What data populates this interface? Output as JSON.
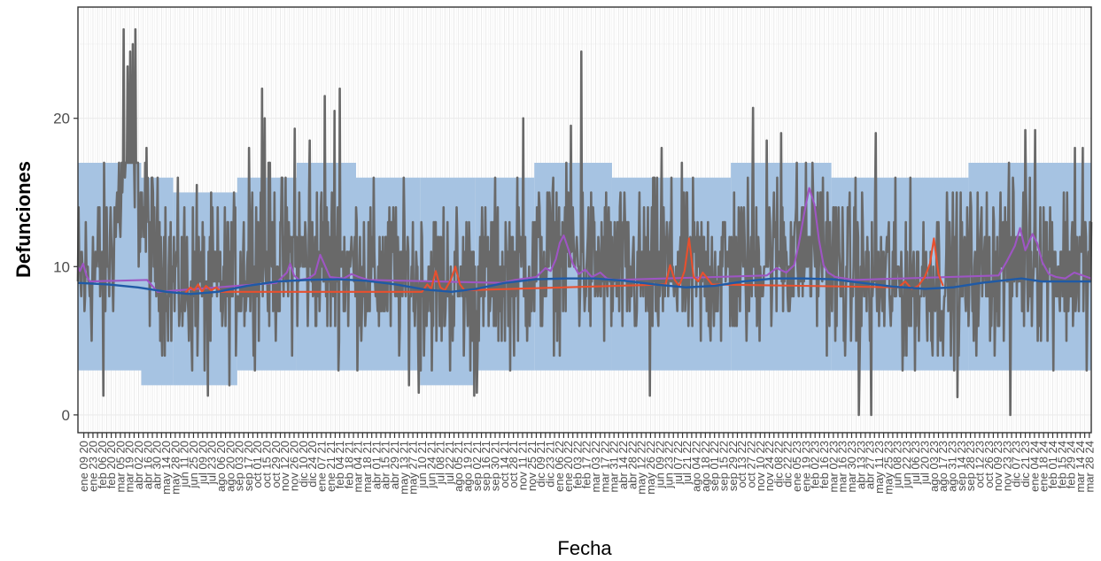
{
  "chart_data": {
    "type": "line",
    "title": "",
    "xlabel": "Fecha",
    "ylabel": "Defunciones",
    "ylim": [
      -1.2,
      27.5
    ],
    "xlim": [
      "2019-12-31",
      "2024-03-31"
    ],
    "y_ticks": [
      0,
      10,
      20
    ],
    "x_tick_labels": [
      "ene 09 20",
      "ene 23 20",
      "feb 06 20",
      "feb 20 20",
      "mar 05 20",
      "mar 19 20",
      "abr 02 20",
      "abr 16 20",
      "abr 30 20",
      "may 14 20",
      "may 28 20",
      "jun 11 20",
      "jun 25 20",
      "jul 09 20",
      "jul 23 20",
      "ago 06 20",
      "ago 20 20",
      "sep 03 20",
      "sep 17 20",
      "oct 01 20",
      "oct 15 20",
      "oct 29 20",
      "nov 12 20",
      "nov 26 20",
      "dic 10 20",
      "dic 24 20",
      "ene 07 21",
      "ene 21 21",
      "feb 04 21",
      "feb 18 21",
      "mar 04 21",
      "mar 18 21",
      "abr 01 21",
      "abr 15 21",
      "abr 29 21",
      "may 13 21",
      "may 27 21",
      "jun 10 21",
      "jun 24 21",
      "jul 08 21",
      "jul 22 21",
      "ago 05 21",
      "ago 19 21",
      "sep 02 21",
      "sep 16 21",
      "sep 30 21",
      "oct 14 21",
      "oct 28 21",
      "nov 11 21",
      "nov 25 21",
      "dic 09 21",
      "dic 23 21",
      "ene 06 22",
      "ene 20 22",
      "feb 03 22",
      "feb 17 22",
      "mar 03 22",
      "mar 17 22",
      "mar 31 22",
      "abr 14 22",
      "abr 28 22",
      "may 12 22",
      "may 26 22",
      "jun 09 22",
      "jun 23 22",
      "jul 07 22",
      "jul 21 22",
      "ago 04 22",
      "ago 18 22",
      "sep 01 22",
      "sep 15 22",
      "sep 29 22",
      "oct 13 22",
      "oct 27 22",
      "nov 10 22",
      "nov 24 22",
      "dic 08 22",
      "dic 22 22",
      "ene 05 23",
      "ene 19 23",
      "feb 02 23",
      "feb 16 23",
      "mar 02 23",
      "mar 16 23",
      "mar 30 23",
      "abr 13 23",
      "abr 27 23",
      "may 11 23",
      "may 25 23",
      "jun 08 23",
      "jun 22 23",
      "jul 06 23",
      "jul 20 23",
      "ago 03 23",
      "ago 17 23",
      "ago 31 23",
      "sep 14 23",
      "sep 28 23",
      "oct 12 23",
      "oct 26 23",
      "nov 09 23",
      "nov 23 23",
      "dic 07 23",
      "dic 21 23",
      "ene 04 24",
      "ene 18 24",
      "feb 01 24",
      "feb 15 24",
      "feb 29 24",
      "mar 14 24",
      "mar 28 24"
    ],
    "band": {
      "color": "#a6c3e2",
      "segments": [
        {
          "start": "2019-12-31",
          "end": "2020-04-06",
          "low": 3,
          "high": 17
        },
        {
          "start": "2020-04-06",
          "end": "2020-05-25",
          "low": 2,
          "high": 16
        },
        {
          "start": "2020-05-25",
          "end": "2020-08-31",
          "low": 2,
          "high": 15
        },
        {
          "start": "2020-08-31",
          "end": "2020-11-30",
          "low": 3,
          "high": 16
        },
        {
          "start": "2020-11-30",
          "end": "2021-03-01",
          "low": 3,
          "high": 17
        },
        {
          "start": "2021-03-01",
          "end": "2021-06-07",
          "low": 3,
          "high": 16
        },
        {
          "start": "2021-06-07",
          "end": "2021-08-30",
          "low": 2,
          "high": 16
        },
        {
          "start": "2021-08-30",
          "end": "2021-11-29",
          "low": 3,
          "high": 16
        },
        {
          "start": "2021-11-29",
          "end": "2022-03-28",
          "low": 3,
          "high": 17
        },
        {
          "start": "2022-03-28",
          "end": "2022-09-26",
          "low": 3,
          "high": 16
        },
        {
          "start": "2022-09-26",
          "end": "2023-02-27",
          "low": 3,
          "high": 17
        },
        {
          "start": "2023-02-27",
          "end": "2023-09-25",
          "low": 3,
          "high": 16
        },
        {
          "start": "2023-09-25",
          "end": "2024-03-31",
          "low": 3,
          "high": 17
        }
      ]
    },
    "series": [
      {
        "color": "#696969",
        "kind": "observed-daily",
        "anchors": [
          [
            "2019-12-31",
            9
          ],
          [
            "2020-01-20",
            9.5
          ],
          [
            "2020-02-20",
            11
          ],
          [
            "2020-03-05",
            15
          ],
          [
            "2020-03-15",
            19
          ],
          [
            "2020-03-25",
            20
          ],
          [
            "2020-04-05",
            14
          ],
          [
            "2020-04-25",
            11
          ],
          [
            "2020-06-01",
            9
          ],
          [
            "2020-07-10",
            8.5
          ],
          [
            "2020-08-20",
            9
          ],
          [
            "2020-10-01",
            11
          ],
          [
            "2020-11-15",
            10.5
          ],
          [
            "2021-01-01",
            10.5
          ],
          [
            "2021-02-15",
            10
          ],
          [
            "2021-04-15",
            9.5
          ],
          [
            "2021-06-15",
            9
          ],
          [
            "2021-08-15",
            9
          ],
          [
            "2021-10-01",
            9.5
          ],
          [
            "2021-12-01",
            10
          ],
          [
            "2022-01-15",
            11
          ],
          [
            "2022-03-01",
            10
          ],
          [
            "2022-05-01",
            9.5
          ],
          [
            "2022-07-01",
            10
          ],
          [
            "2022-08-15",
            9.5
          ],
          [
            "2022-10-15",
            10
          ],
          [
            "2022-12-15",
            11
          ],
          [
            "2023-02-01",
            11.5
          ],
          [
            "2023-03-15",
            9.5
          ],
          [
            "2023-05-15",
            9
          ],
          [
            "2023-07-15",
            9
          ],
          [
            "2023-09-15",
            9.5
          ],
          [
            "2023-11-01",
            10
          ],
          [
            "2023-12-20",
            11
          ],
          [
            "2024-01-20",
            10.5
          ],
          [
            "2024-03-31",
            9.5
          ]
        ],
        "spread": 2.7,
        "peaks": [
          [
            "2020-03-10",
            26
          ],
          [
            "2020-03-16",
            23.5
          ],
          [
            "2020-03-20",
            24.5
          ],
          [
            "2020-03-24",
            25
          ],
          [
            "2020-03-28",
            26
          ],
          [
            "2020-04-14",
            18
          ],
          [
            "2020-06-30",
            15.5
          ],
          [
            "2020-09-18",
            18
          ],
          [
            "2020-10-08",
            22
          ],
          [
            "2020-10-12",
            20
          ],
          [
            "2020-11-27",
            19.3
          ],
          [
            "2020-12-20",
            18.5
          ],
          [
            "2021-01-12",
            21.5
          ],
          [
            "2021-01-27",
            20.5
          ],
          [
            "2021-02-04",
            22
          ],
          [
            "2021-11-12",
            20
          ],
          [
            "2022-01-24",
            19.5
          ],
          [
            "2022-02-09",
            24.5
          ],
          [
            "2022-06-12",
            18
          ],
          [
            "2022-10-30",
            20.7
          ],
          [
            "2022-11-20",
            18.5
          ],
          [
            "2022-12-12",
            19
          ],
          [
            "2023-02-14",
            16
          ],
          [
            "2023-04-05",
            16
          ],
          [
            "2023-05-06",
            19
          ],
          [
            "2023-12-21",
            19.2
          ],
          [
            "2024-01-05",
            19.2
          ],
          [
            "2024-03-06",
            18
          ],
          [
            "2024-03-18",
            18
          ]
        ],
        "dips": [
          [
            "2020-02-08",
            1.3
          ],
          [
            "2020-07-17",
            1.3
          ],
          [
            "2021-06-05",
            1.5
          ],
          [
            "2021-08-29",
            1.3
          ],
          [
            "2021-09-02",
            1.5
          ],
          [
            "2022-05-25",
            1.3
          ],
          [
            "2023-04-10",
            0
          ],
          [
            "2023-04-29",
            0
          ],
          [
            "2023-09-08",
            1.2
          ],
          [
            "2023-11-28",
            0
          ]
        ]
      },
      {
        "color": "#9e55c4",
        "kind": "excess-high",
        "points": [
          [
            "2019-12-31",
            10
          ],
          [
            "2020-01-03",
            9.7
          ],
          [
            "2020-01-08",
            10.2
          ],
          [
            "2020-01-13",
            9.4
          ],
          [
            "2020-01-18",
            9
          ],
          [
            "2020-04-15",
            9.1
          ],
          [
            "2020-04-25",
            8.6
          ],
          [
            "2020-05-01",
            8.3
          ],
          [
            "2020-10-30",
            8.9
          ],
          [
            "2020-11-08",
            9.3
          ],
          [
            "2020-11-15",
            9.6
          ],
          [
            "2020-11-20",
            10.2
          ],
          [
            "2020-11-26",
            9.4
          ],
          [
            "2020-12-04",
            9.1
          ],
          [
            "2020-12-18",
            9.2
          ],
          [
            "2020-12-28",
            9.5
          ],
          [
            "2021-01-05",
            10.8
          ],
          [
            "2021-01-12",
            10.1
          ],
          [
            "2021-01-20",
            9.3
          ],
          [
            "2021-02-10",
            9.2
          ],
          [
            "2021-02-22",
            9.5
          ],
          [
            "2021-03-05",
            9.3
          ],
          [
            "2021-03-20",
            9.1
          ],
          [
            "2021-10-10",
            8.9
          ],
          [
            "2021-10-30",
            9.1
          ],
          [
            "2021-12-02",
            9.3
          ],
          [
            "2021-12-16",
            9.9
          ],
          [
            "2021-12-24",
            9.7
          ],
          [
            "2022-01-01",
            10.5
          ],
          [
            "2022-01-07",
            11.6
          ],
          [
            "2022-01-13",
            12.1
          ],
          [
            "2022-01-20",
            11.2
          ],
          [
            "2022-01-27",
            10.2
          ],
          [
            "2022-02-05",
            9.5
          ],
          [
            "2022-02-15",
            9.8
          ],
          [
            "2022-02-25",
            9.3
          ],
          [
            "2022-03-10",
            9.6
          ],
          [
            "2022-03-20",
            9.2
          ],
          [
            "2022-04-01",
            9.1
          ],
          [
            "2022-11-20",
            9.4
          ],
          [
            "2022-12-05",
            9.9
          ],
          [
            "2022-12-20",
            9.6
          ],
          [
            "2023-01-01",
            10.1
          ],
          [
            "2023-01-08",
            11.5
          ],
          [
            "2023-01-16",
            13.5
          ],
          [
            "2023-01-24",
            15.3
          ],
          [
            "2023-02-01",
            14.2
          ],
          [
            "2023-02-08",
            11.8
          ],
          [
            "2023-02-15",
            10.1
          ],
          [
            "2023-02-22",
            9.6
          ],
          [
            "2023-03-05",
            9.3
          ],
          [
            "2023-03-20",
            9.2
          ],
          [
            "2023-04-01",
            9.1
          ],
          [
            "2023-11-10",
            9.4
          ],
          [
            "2023-11-22",
            10.3
          ],
          [
            "2023-12-05",
            11.4
          ],
          [
            "2023-12-13",
            12.6
          ],
          [
            "2023-12-21",
            11.1
          ],
          [
            "2024-01-01",
            12.2
          ],
          [
            "2024-01-08",
            11.6
          ],
          [
            "2024-01-16",
            10.3
          ],
          [
            "2024-01-26",
            9.5
          ],
          [
            "2024-02-06",
            9.3
          ],
          [
            "2024-02-20",
            9.2
          ],
          [
            "2024-03-05",
            9.6
          ],
          [
            "2024-03-31",
            9.2
          ]
        ]
      },
      {
        "color": "#e8502e",
        "kind": "excess-low",
        "points": [
          [
            "2020-06-12",
            8.2
          ],
          [
            "2020-06-20",
            8.6
          ],
          [
            "2020-06-26",
            8.4
          ],
          [
            "2020-07-02",
            8.8
          ],
          [
            "2020-07-08",
            8.3
          ],
          [
            "2020-07-14",
            8.7
          ],
          [
            "2020-07-22",
            8.4
          ],
          [
            "2020-07-30",
            8.6
          ],
          [
            "2020-08-06",
            8.3
          ],
          [
            "2021-06-10",
            8.3
          ],
          [
            "2021-06-18",
            8.8
          ],
          [
            "2021-06-24",
            8.5
          ],
          [
            "2021-07-01",
            9.7
          ],
          [
            "2021-07-08",
            8.6
          ],
          [
            "2021-07-15",
            8.4
          ],
          [
            "2021-07-24",
            9.1
          ],
          [
            "2021-07-31",
            10
          ],
          [
            "2021-08-07",
            8.8
          ],
          [
            "2021-08-14",
            8.4
          ],
          [
            "2022-06-18",
            8.8
          ],
          [
            "2022-06-25",
            10.1
          ],
          [
            "2022-07-02",
            9.1
          ],
          [
            "2022-07-09",
            8.7
          ],
          [
            "2022-07-17",
            9.7
          ],
          [
            "2022-07-24",
            11.9
          ],
          [
            "2022-07-31",
            9.3
          ],
          [
            "2022-08-07",
            9
          ],
          [
            "2022-08-14",
            9.6
          ],
          [
            "2022-08-21",
            9.2
          ],
          [
            "2022-08-28",
            8.8
          ],
          [
            "2023-06-10",
            8.6
          ],
          [
            "2023-06-20",
            9
          ],
          [
            "2023-06-30",
            8.5
          ],
          [
            "2023-07-10",
            8.7
          ],
          [
            "2023-07-20",
            9.3
          ],
          [
            "2023-07-28",
            10.2
          ],
          [
            "2023-08-03",
            11.9
          ],
          [
            "2023-08-10",
            9.5
          ],
          [
            "2023-08-17",
            8.7
          ]
        ]
      },
      {
        "color": "#1f5aa6",
        "kind": "expected",
        "points": [
          [
            "2019-12-31",
            8.9
          ],
          [
            "2020-02-15",
            8.8
          ],
          [
            "2020-04-01",
            8.6
          ],
          [
            "2020-05-15",
            8.3
          ],
          [
            "2020-06-20",
            8.15
          ],
          [
            "2020-08-01",
            8.3
          ],
          [
            "2020-09-15",
            8.7
          ],
          [
            "2020-11-01",
            9
          ],
          [
            "2020-12-15",
            9.1
          ],
          [
            "2021-02-01",
            9.15
          ],
          [
            "2021-03-15",
            9.05
          ],
          [
            "2021-05-01",
            8.8
          ],
          [
            "2021-06-15",
            8.45
          ],
          [
            "2021-07-25",
            8.3
          ],
          [
            "2021-09-01",
            8.5
          ],
          [
            "2021-10-15",
            8.9
          ],
          [
            "2021-12-01",
            9.15
          ],
          [
            "2022-01-15",
            9.2
          ],
          [
            "2022-03-01",
            9.2
          ],
          [
            "2022-04-15",
            9.05
          ],
          [
            "2022-06-01",
            8.8
          ],
          [
            "2022-07-20",
            8.6
          ],
          [
            "2022-09-01",
            8.7
          ],
          [
            "2022-10-15",
            9
          ],
          [
            "2022-12-01",
            9.2
          ],
          [
            "2023-01-15",
            9.2
          ],
          [
            "2023-03-01",
            9.15
          ],
          [
            "2023-04-15",
            8.9
          ],
          [
            "2023-06-01",
            8.65
          ],
          [
            "2023-07-20",
            8.5
          ],
          [
            "2023-09-01",
            8.6
          ],
          [
            "2023-10-15",
            8.9
          ],
          [
            "2023-12-15",
            9.2
          ],
          [
            "2024-01-15",
            9
          ],
          [
            "2024-03-31",
            9
          ]
        ]
      }
    ]
  }
}
